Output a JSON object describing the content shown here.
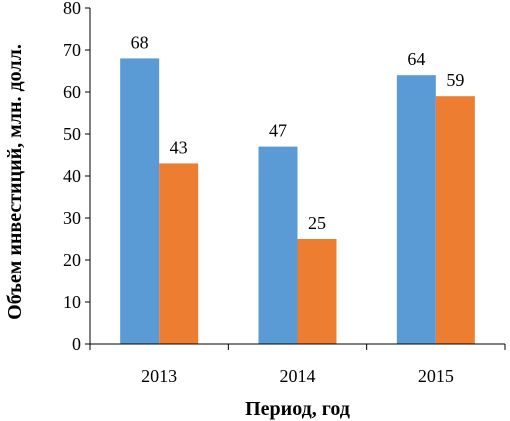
{
  "chart_data": {
    "type": "bar",
    "title": "",
    "xlabel": "Период, год",
    "ylabel": "Объем инвестиций, млн. долл.",
    "categories": [
      "2013",
      "2014",
      "2015"
    ],
    "series": [
      {
        "color": "#5b9bd5",
        "values": [
          68,
          47,
          64
        ]
      },
      {
        "color": "#ed7d31",
        "values": [
          43,
          25,
          59
        ]
      }
    ],
    "ylim": [
      0,
      80
    ],
    "yticks": [
      0,
      10,
      20,
      30,
      40,
      50,
      60,
      70,
      80
    ],
    "grid": false,
    "legend": "none"
  }
}
